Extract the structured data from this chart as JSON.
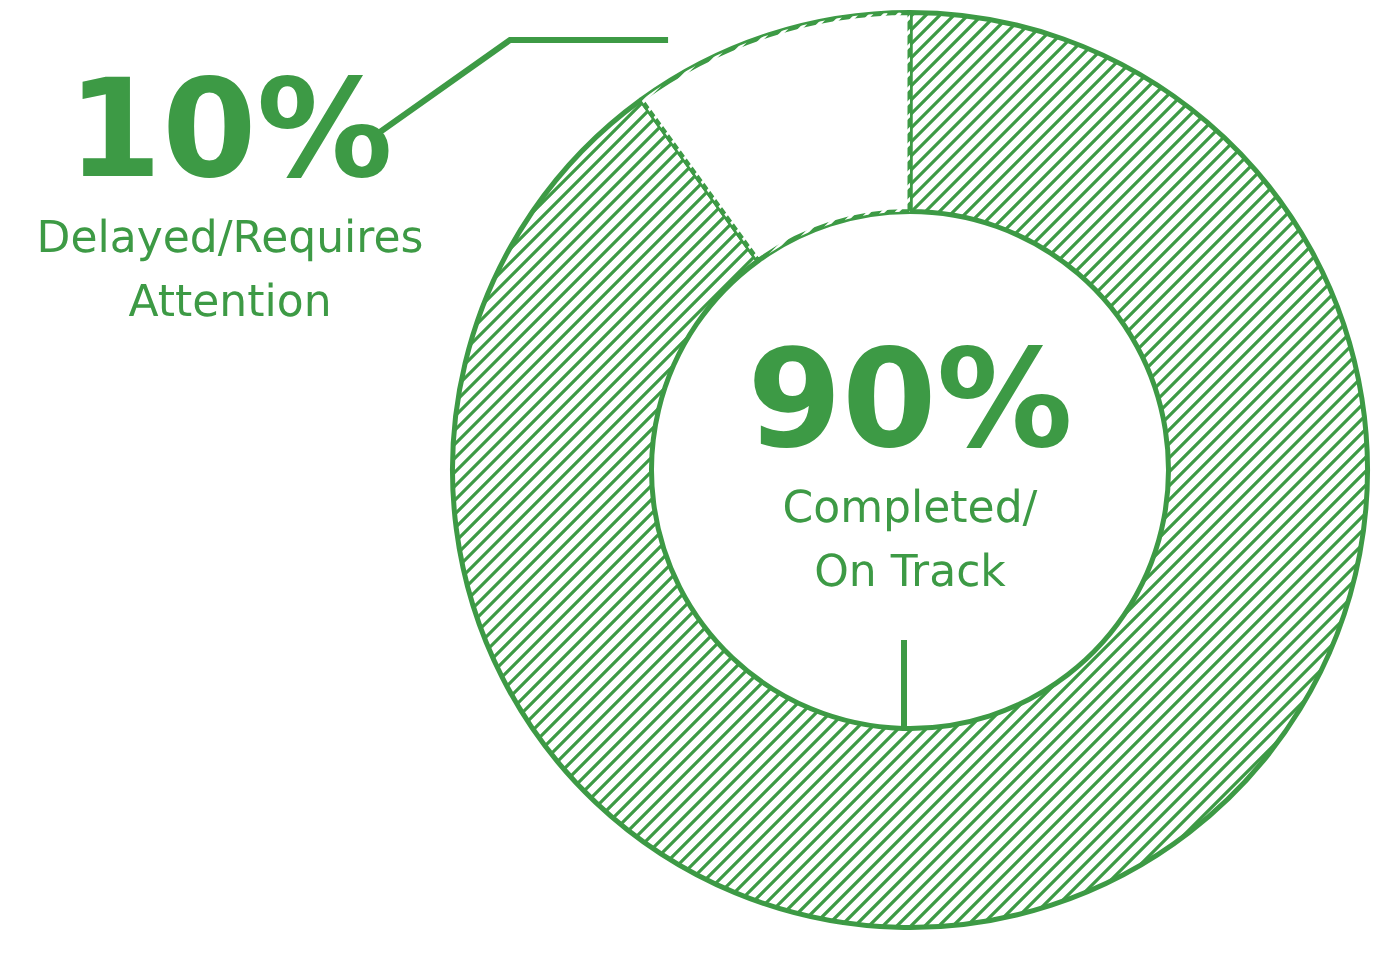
{
  "chart_data": {
    "type": "donut",
    "categories": [
      "Completed/\nOn Track",
      "Delayed/Requires\nAttention"
    ],
    "values": [
      90,
      10
    ],
    "colors": [
      "#3d9a45",
      "#ffffff"
    ],
    "value_labels": [
      "90%",
      "10%"
    ],
    "legend": false
  }
}
